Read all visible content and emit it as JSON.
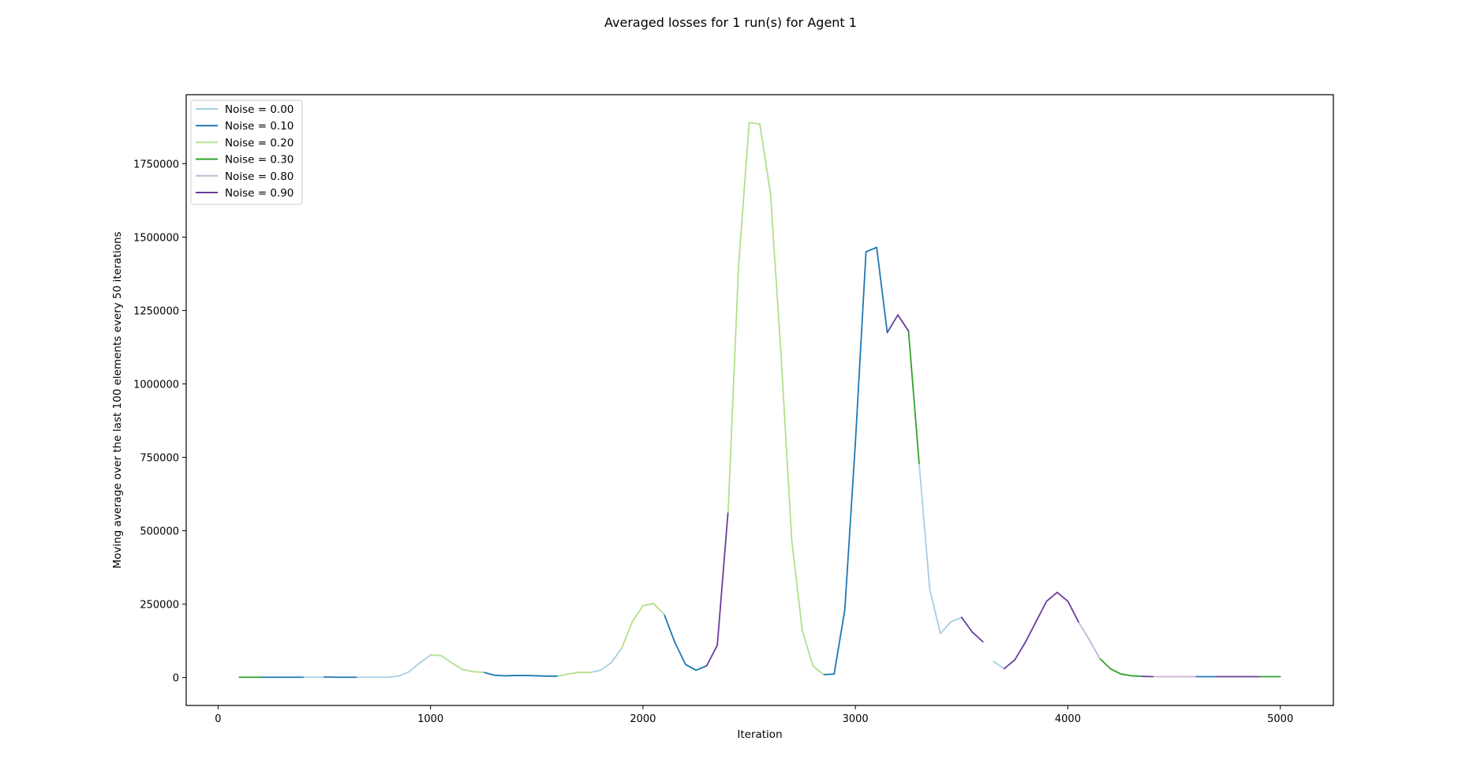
{
  "chart_data": {
    "type": "line",
    "title": "Averaged losses for 1 run(s) for Agent 1",
    "xlabel": "Iteration",
    "ylabel": "Moving average over the last 100 elements every 50 iterations",
    "xlim": [
      -150,
      5250
    ],
    "ylim": [
      -95000,
      1985000
    ],
    "x_ticks": [
      0,
      1000,
      2000,
      3000,
      4000,
      5000
    ],
    "x_tick_labels": [
      "0",
      "1000",
      "2000",
      "3000",
      "4000",
      "5000"
    ],
    "y_ticks": [
      0,
      250000,
      500000,
      750000,
      1000000,
      1250000,
      1500000,
      1750000
    ],
    "y_tick_labels": [
      "0",
      "250000",
      "500000",
      "750000",
      "1000000",
      "1250000",
      "1500000",
      "1750000"
    ],
    "grid": false,
    "legend_position": "top-left",
    "series": [
      {
        "name": "Noise = 0.00",
        "color": "#a6cee3",
        "x": [
          400,
          450,
          500,
          650,
          700,
          750,
          800,
          850,
          900,
          950,
          1000,
          1750,
          1800,
          1850,
          1900,
          3300,
          3350,
          3400,
          3450,
          3500,
          3650,
          3700
        ],
        "y": [
          1000,
          1000,
          1000,
          1000,
          1000,
          1000,
          1000,
          5000,
          20000,
          50000,
          77000,
          17000,
          25000,
          50000,
          100000,
          730000,
          300000,
          150000,
          190000,
          205000,
          55000,
          30000
        ]
      },
      {
        "name": "Noise = 0.10",
        "color": "#1f78b4",
        "x": [
          200,
          250,
          300,
          350,
          400,
          500,
          550,
          600,
          650,
          1250,
          1300,
          1350,
          1400,
          1450,
          1500,
          1550,
          1600,
          2100,
          2150,
          2200,
          2250,
          2300,
          2850,
          2900,
          2950,
          3000,
          3050,
          3100,
          3150,
          4600,
          4650,
          4700
        ],
        "y": [
          1000,
          1000,
          1000,
          1000,
          1000,
          2000,
          1000,
          1000,
          1000,
          18000,
          8000,
          6000,
          7000,
          7000,
          6000,
          5000,
          5000,
          215000,
          120000,
          45000,
          25000,
          40000,
          10000,
          12000,
          230000,
          800000,
          1450000,
          1465000,
          1175000,
          3000,
          3000,
          3000
        ]
      },
      {
        "name": "Noise = 0.20",
        "color": "#b2df8a",
        "x": [
          1000,
          1050,
          1100,
          1150,
          1200,
          1250,
          1600,
          1650,
          1700,
          1750,
          1900,
          1950,
          2000,
          2050,
          2100,
          2400,
          2450,
          2500,
          2550,
          2600,
          2650,
          2700,
          2750,
          2800,
          2850
        ],
        "y": [
          77000,
          75000,
          50000,
          28000,
          20000,
          18000,
          5000,
          12000,
          18000,
          17000,
          100000,
          190000,
          245000,
          252000,
          215000,
          550000,
          1400000,
          1890000,
          1885000,
          1650000,
          1100000,
          470000,
          160000,
          40000,
          10000
        ]
      },
      {
        "name": "Noise = 0.30",
        "color": "#33a02c",
        "x": [
          100,
          150,
          200,
          3250,
          3300,
          4150,
          4200,
          4250,
          4300,
          4350,
          4900,
          4950,
          5000
        ],
        "y": [
          1000,
          1000,
          1000,
          1180000,
          730000,
          65000,
          30000,
          12000,
          6000,
          4000,
          3000,
          3000,
          3000
        ]
      },
      {
        "name": "Noise = 0.80",
        "color": "#cab2d6",
        "x": [
          4050,
          4100,
          4150,
          4400,
          4450,
          4500,
          4550,
          4600
        ],
        "y": [
          190000,
          130000,
          65000,
          3000,
          3000,
          3000,
          3000,
          3000
        ]
      },
      {
        "name": "Noise = 0.90",
        "color": "#6a3d9a",
        "x": [
          2300,
          2350,
          2400,
          3150,
          3200,
          3250,
          3500,
          3550,
          3600,
          3700,
          3750,
          3800,
          3850,
          3900,
          3950,
          4000,
          4050,
          4350,
          4400,
          4700,
          4750,
          4800,
          4850,
          4900
        ],
        "y": [
          40000,
          110000,
          560000,
          1175000,
          1235000,
          1180000,
          205000,
          155000,
          122000,
          30000,
          60000,
          120000,
          190000,
          260000,
          290000,
          260000,
          190000,
          4000,
          3000,
          3000,
          3000,
          3000,
          3000,
          3000
        ]
      }
    ]
  }
}
